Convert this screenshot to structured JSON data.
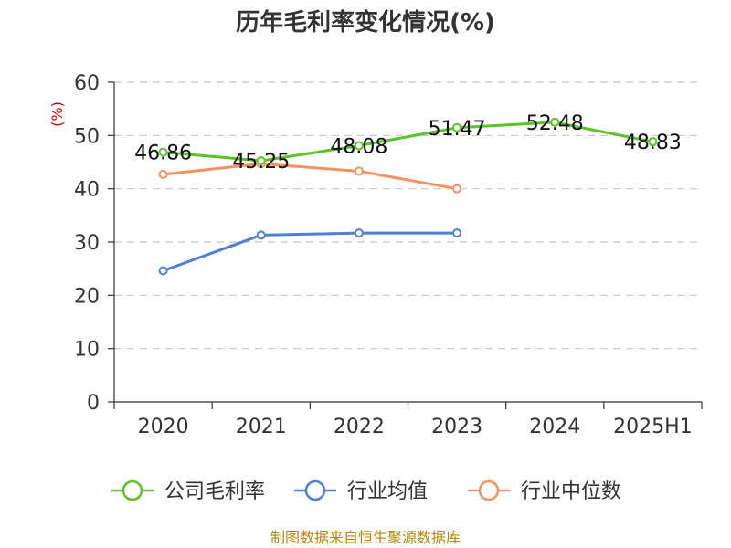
{
  "chart_data": {
    "type": "line",
    "title": "历年毛利率变化情况(%)",
    "ylabel": "(%)",
    "categories": [
      "2020",
      "2021",
      "2022",
      "2023",
      "2024",
      "2025H1"
    ],
    "ylim": [
      0,
      60
    ],
    "yticks": [
      0,
      10,
      20,
      30,
      40,
      50,
      60
    ],
    "grid": true,
    "legend_position": "bottom",
    "series": [
      {
        "name": "公司毛利率",
        "color": "#5dc22a",
        "values": [
          46.86,
          45.25,
          48.08,
          51.47,
          52.48,
          48.83
        ],
        "labels": [
          "46.86",
          "45.25",
          "48.08",
          "51.47",
          "52.48",
          "48.83"
        ],
        "show_labels": true,
        "stroke_width": 3
      },
      {
        "name": "行业均值",
        "color": "#4f7fd6",
        "values": [
          24.6,
          31.3,
          31.7,
          31.7,
          null,
          null
        ],
        "show_labels": false,
        "stroke_width": 3
      },
      {
        "name": "行业中位数",
        "color": "#f59262",
        "values": [
          42.7,
          44.7,
          43.3,
          40.0,
          null,
          null
        ],
        "show_labels": false,
        "stroke_width": 3
      }
    ]
  },
  "footer": {
    "source": "制图数据来自恒生聚源数据库"
  }
}
